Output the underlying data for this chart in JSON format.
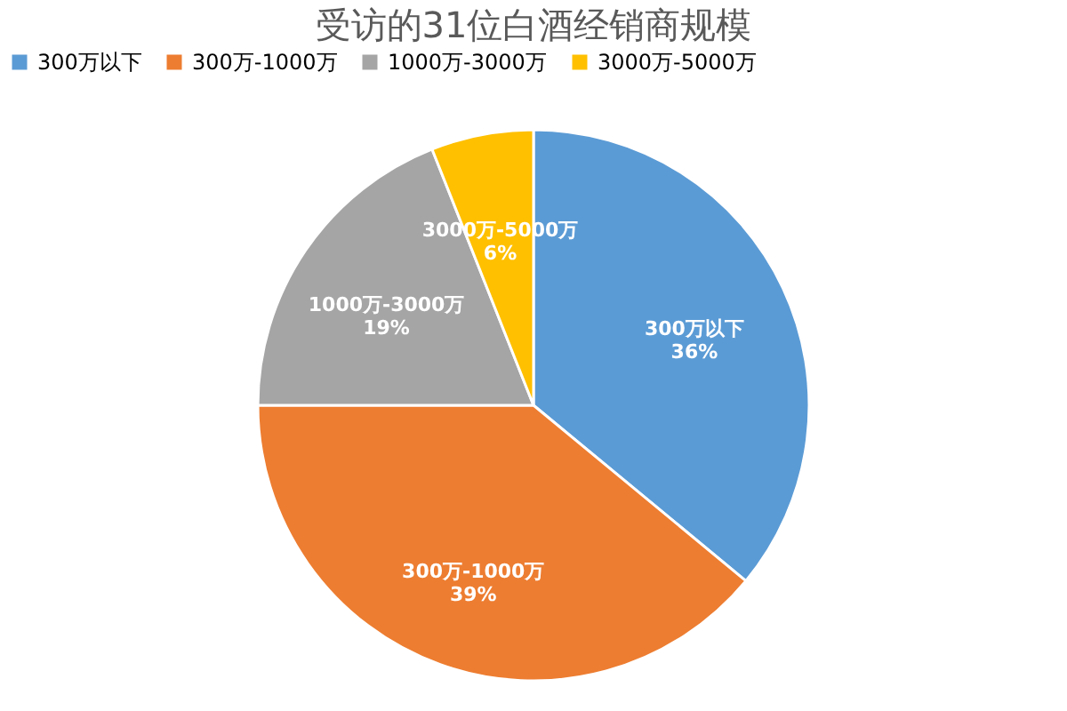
{
  "chart_data": {
    "type": "pie",
    "title": "受访的31位白酒经销商规模",
    "categories": [
      "300万以下",
      "300万-1000万",
      "1000万-3000万",
      "3000万-5000万"
    ],
    "values": [
      36,
      39,
      19,
      6
    ],
    "value_labels": [
      "36%",
      "39%",
      "19%",
      "6%"
    ],
    "colors": [
      "#5b9bd5",
      "#ed7d31",
      "#a5a5a5",
      "#ffc000"
    ],
    "legend": "top"
  }
}
